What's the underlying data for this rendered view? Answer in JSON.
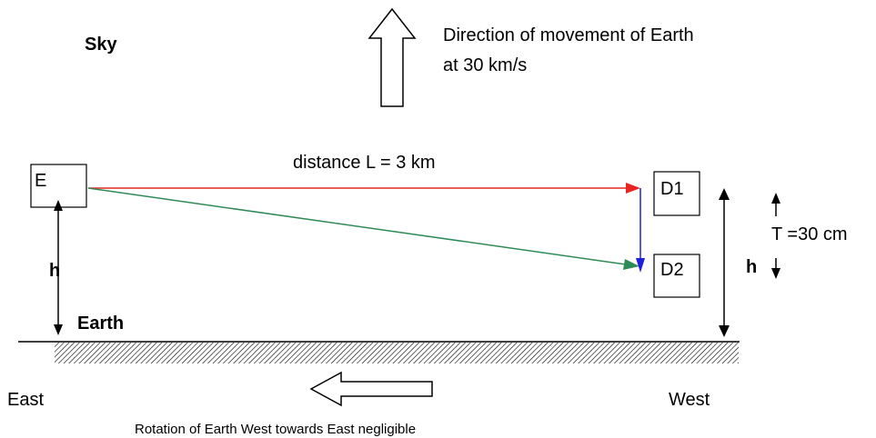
{
  "labels": {
    "sky": "Sky",
    "direction_line1": "Direction of movement of Earth",
    "direction_line2": "at 30 km/s",
    "distance": "distance L = 3 km",
    "emitter": "E",
    "detector1": "D1",
    "detector2": "D2",
    "height_left": "h",
    "height_right": "h",
    "thickness": "T =30 cm",
    "earth": "Earth",
    "east": "East",
    "west": "West",
    "rotation": "Rotation of Earth  West towards East negligible"
  },
  "colors": {
    "horizontal_beam": "#e8261f",
    "diagonal_beam": "#2e8b57",
    "displacement": "#1f1fe0",
    "ink": "#000000"
  }
}
